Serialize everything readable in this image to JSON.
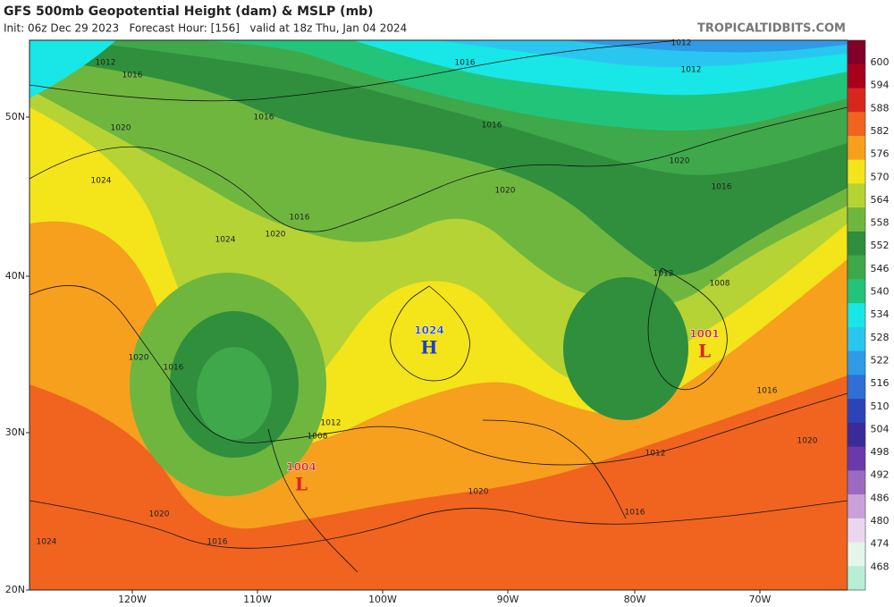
{
  "header": {
    "title": "GFS 500mb Geopotential Height (dam) & MSLP (mb)",
    "subtitle": "Init: 06z Dec 29 2023   Forecast Hour: [156]   valid at 18z Thu, Jan 04 2024",
    "credit": "TROPICALTIDBITS.COM"
  },
  "colorbar": {
    "levels": [
      {
        "label": 600,
        "color": "#80002a"
      },
      {
        "label": 594,
        "color": "#a8001c"
      },
      {
        "label": 588,
        "color": "#d7261e"
      },
      {
        "label": 582,
        "color": "#f0641f"
      },
      {
        "label": 576,
        "color": "#f7a01d"
      },
      {
        "label": 570,
        "color": "#f4e41a"
      },
      {
        "label": 564,
        "color": "#b5d334"
      },
      {
        "label": 558,
        "color": "#6fb63f"
      },
      {
        "label": 552,
        "color": "#2f8f3c"
      },
      {
        "label": 546,
        "color": "#3ea84b"
      },
      {
        "label": 540,
        "color": "#22c47a"
      },
      {
        "label": 534,
        "color": "#19e6e6"
      },
      {
        "label": 528,
        "color": "#29c7f0"
      },
      {
        "label": 522,
        "color": "#2f9ae6"
      },
      {
        "label": 516,
        "color": "#2f6fd6"
      },
      {
        "label": 510,
        "color": "#2d44b8"
      },
      {
        "label": 504,
        "color": "#3a2a9a"
      },
      {
        "label": 498,
        "color": "#6a3aaa"
      },
      {
        "label": 492,
        "color": "#9b6ac0"
      },
      {
        "label": 486,
        "color": "#c9a0d8"
      },
      {
        "label": 480,
        "color": "#ead7ef"
      },
      {
        "label": 474,
        "color": "#e4f5ea"
      },
      {
        "label": 468,
        "color": "#b8efd4"
      }
    ]
  },
  "axes": {
    "latitudes": [
      "50N",
      "40N",
      "30N",
      "20N"
    ],
    "longitudes": [
      "120W",
      "110W",
      "100W",
      "90W",
      "80W",
      "70W"
    ]
  },
  "pressure_centers": [
    {
      "pressure": "1024",
      "symbol": "H"
    },
    {
      "pressure": "1001",
      "symbol": "L"
    },
    {
      "pressure": "1004",
      "symbol": "L"
    }
  ],
  "isobar_labels": [
    "1012",
    "1012",
    "1016",
    "1016",
    "1016",
    "1016",
    "1020",
    "1024",
    "1016",
    "1024",
    "1020",
    "1020",
    "1016",
    "1020",
    "1012",
    "1012",
    "1008",
    "1016",
    "1020",
    "1012",
    "1016",
    "1020",
    "1012",
    "1008",
    "1020",
    "1016",
    "1020",
    "1024",
    "1016"
  ]
}
